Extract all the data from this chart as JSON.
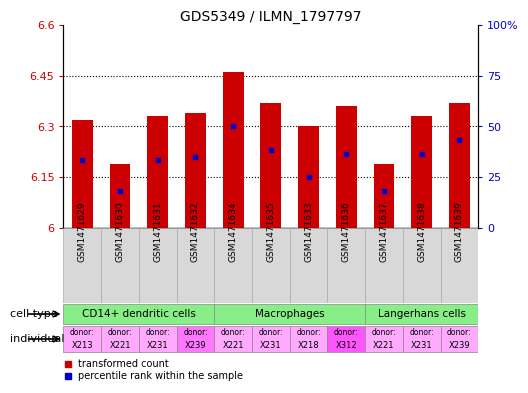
{
  "title": "GDS5349 / ILMN_1797797",
  "samples": [
    "GSM1471629",
    "GSM1471630",
    "GSM1471631",
    "GSM1471632",
    "GSM1471634",
    "GSM1471635",
    "GSM1471633",
    "GSM1471636",
    "GSM1471637",
    "GSM1471638",
    "GSM1471639"
  ],
  "bar_tops": [
    6.32,
    6.19,
    6.33,
    6.34,
    6.46,
    6.37,
    6.3,
    6.36,
    6.19,
    6.33,
    6.37
  ],
  "blue_markers": [
    6.2,
    6.11,
    6.2,
    6.21,
    6.3,
    6.23,
    6.15,
    6.22,
    6.11,
    6.22,
    6.26
  ],
  "ylim_left": [
    6.0,
    6.6
  ],
  "ylim_right": [
    0,
    100
  ],
  "yticks_left": [
    6.0,
    6.15,
    6.3,
    6.45,
    6.6
  ],
  "ytick_labels_left": [
    "6",
    "6.15",
    "6.3",
    "6.45",
    "6.6"
  ],
  "yticks_right": [
    0,
    25,
    50,
    75,
    100
  ],
  "ytick_labels_right": [
    "0",
    "25",
    "50",
    "75",
    "100%"
  ],
  "bar_color": "#cc0000",
  "blue_color": "#0000cc",
  "bar_bottom": 6.0,
  "bar_width": 0.55,
  "cell_type_groups": [
    {
      "label": "CD14+ dendritic cells",
      "start": 0,
      "end": 3,
      "color": "#88ee88"
    },
    {
      "label": "Macrophages",
      "start": 4,
      "end": 7,
      "color": "#88ee88"
    },
    {
      "label": "Langerhans cells",
      "start": 8,
      "end": 10,
      "color": "#88ee88"
    }
  ],
  "individuals": [
    {
      "donor": "X213",
      "bg": "#ffaaff"
    },
    {
      "donor": "X221",
      "bg": "#ffaaff"
    },
    {
      "donor": "X231",
      "bg": "#ffaaff"
    },
    {
      "donor": "X239",
      "bg": "#ff77ff"
    },
    {
      "donor": "X221",
      "bg": "#ffaaff"
    },
    {
      "donor": "X231",
      "bg": "#ffaaff"
    },
    {
      "donor": "X218",
      "bg": "#ffaaff"
    },
    {
      "donor": "X312",
      "bg": "#ff55ff"
    },
    {
      "donor": "X221",
      "bg": "#ffaaff"
    },
    {
      "donor": "X231",
      "bg": "#ffaaff"
    },
    {
      "donor": "X239",
      "bg": "#ffaaff"
    }
  ],
  "cell_type_label": "cell type",
  "individual_label": "individual",
  "legend_red": "transformed count",
  "legend_blue": "percentile rank within the sample",
  "grid_color": "black",
  "tick_label_color_left": "#cc0000",
  "tick_label_color_right": "#0000cc",
  "bg_color": "#ffffff",
  "sample_area_bg": "#d8d8d8"
}
